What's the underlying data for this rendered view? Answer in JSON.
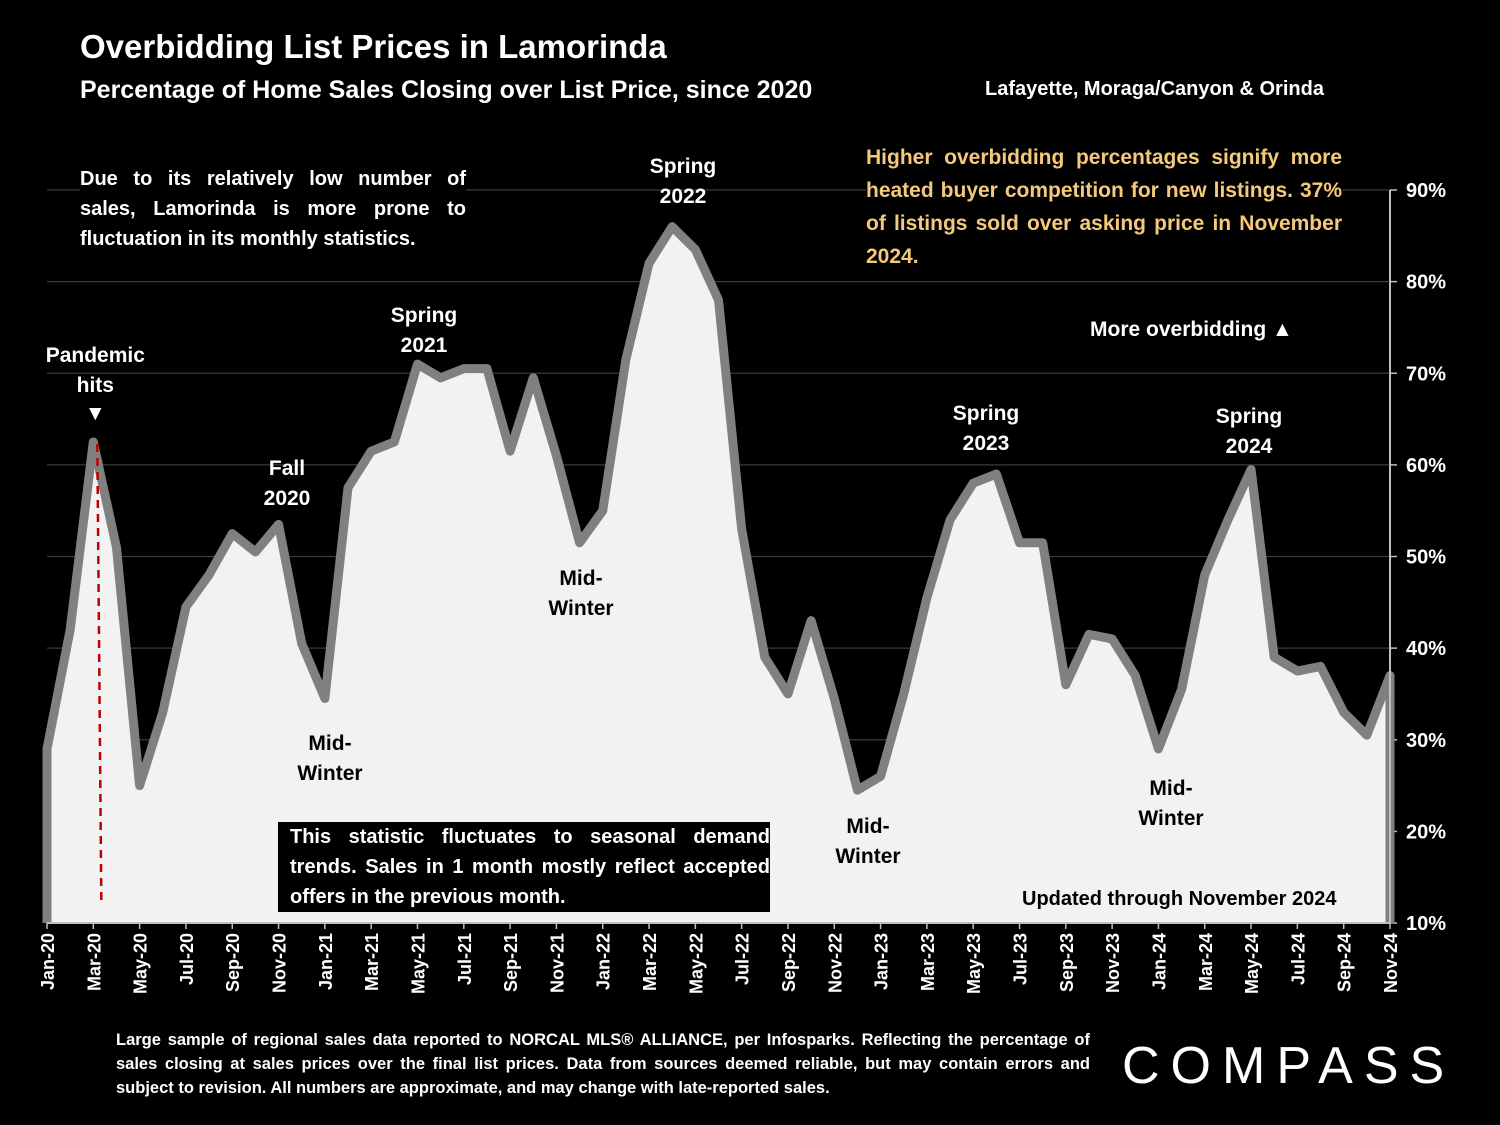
{
  "header": {
    "title": "Overbidding List Prices in Lamorinda",
    "subtitle": "Percentage of Home Sales Closing over List Price, since 2020",
    "region": "Lafayette, Moraga/Canyon & Orinda"
  },
  "notes": {
    "low_sales": "Due to its relatively low number of sales, Lamorinda is more prone to fluctuation in its monthly statistics.",
    "overbid": "Higher overbidding percentages signify more heated buyer competition for new listings. 37% of listings sold over asking price in November 2024.",
    "seasonal": "This statistic fluctuates to seasonal demand trends. Sales in 1 month mostly reflect accepted offers in the previous month.",
    "more_overbidding": "More overbidding ▲",
    "updated": "Updated through November 2024"
  },
  "footer": {
    "disclaimer": "Large sample of regional sales data reported to NORCAL MLS® ALLIANCE, per Infosparks. Reflecting the percentage of sales closing at sales prices over the final list prices. Data from sources deemed reliable, but may contain errors and subject to revision. All numbers are approximate, and may change with late-reported sales.",
    "logo": "COMPASS"
  },
  "colors": {
    "background": "#000000",
    "area_fill": "#f2f2f2",
    "line": "#808080",
    "grid": "#3a3a3a",
    "marker_line": "#c00000",
    "highlight_text": "#f5c97a"
  },
  "chart_data": {
    "type": "area",
    "title": "Overbidding List Prices in Lamorinda",
    "subtitle": "Percentage of Home Sales Closing over List Price, since 2020",
    "ylim": [
      10,
      90
    ],
    "y_ticks": [
      10,
      20,
      30,
      40,
      50,
      60,
      70,
      80,
      90
    ],
    "y_tick_suffix": "%",
    "y_axis_side": "right",
    "grid": true,
    "x": [
      "Jan-20",
      "Feb-20",
      "Mar-20",
      "Apr-20",
      "May-20",
      "Jun-20",
      "Jul-20",
      "Aug-20",
      "Sep-20",
      "Oct-20",
      "Nov-20",
      "Dec-20",
      "Jan-21",
      "Feb-21",
      "Mar-21",
      "Apr-21",
      "May-21",
      "Jun-21",
      "Jul-21",
      "Aug-21",
      "Sep-21",
      "Oct-21",
      "Nov-21",
      "Dec-21",
      "Jan-22",
      "Feb-22",
      "Mar-22",
      "Apr-22",
      "May-22",
      "Jun-22",
      "Jul-22",
      "Aug-22",
      "Sep-22",
      "Oct-22",
      "Nov-22",
      "Dec-22",
      "Jan-23",
      "Feb-23",
      "Mar-23",
      "Apr-23",
      "May-23",
      "Jun-23",
      "Jul-23",
      "Aug-23",
      "Sep-23",
      "Oct-23",
      "Nov-23",
      "Dec-23",
      "Jan-24",
      "Feb-24",
      "Mar-24",
      "Apr-24",
      "May-24",
      "Jun-24",
      "Jul-24",
      "Aug-24",
      "Sep-24",
      "Oct-24",
      "Nov-24"
    ],
    "x_tick_labels": [
      "Jan-20",
      "Mar-20",
      "May-20",
      "Jul-20",
      "Sep-20",
      "Nov-20",
      "Jan-21",
      "Mar-21",
      "May-21",
      "Jul-21",
      "Sep-21",
      "Nov-21",
      "Jan-22",
      "Mar-22",
      "May-22",
      "Jul-22",
      "Sep-22",
      "Nov-22",
      "Jan-23",
      "Mar-23",
      "May-23",
      "Jul-23",
      "Sep-23",
      "Nov-23",
      "Jan-24",
      "Mar-24",
      "May-24",
      "Jul-24",
      "Sep-24",
      "Nov-24"
    ],
    "values": [
      29,
      42,
      62.5,
      51,
      25,
      33,
      44.5,
      48,
      52.5,
      50.5,
      53.5,
      40.5,
      34.5,
      57.5,
      61.5,
      62.5,
      71,
      69.5,
      70.5,
      70.5,
      61.5,
      69.5,
      61,
      51.5,
      55,
      71.5,
      82,
      86,
      83.5,
      78,
      53,
      39,
      35,
      43,
      34.5,
      24.5,
      26,
      35,
      45.5,
      54,
      58,
      59,
      51.5,
      51.5,
      36,
      41.5,
      41,
      37,
      29,
      35.5,
      48,
      54,
      59.5,
      39,
      37.5,
      38,
      33,
      30.5,
      37
    ],
    "marker": {
      "x": "Mar-20",
      "label": "Pandemic hits",
      "arrow": "▼"
    },
    "annotations": [
      {
        "label": "Fall 2020"
      },
      {
        "label": "Mid-Winter"
      },
      {
        "label": "Spring 2021"
      },
      {
        "label": "Mid-Winter"
      },
      {
        "label": "Spring 2022"
      },
      {
        "label": "Mid-Winter"
      },
      {
        "label": "Spring 2023"
      },
      {
        "label": "Mid-Winter"
      },
      {
        "label": "Spring 2024"
      }
    ]
  }
}
